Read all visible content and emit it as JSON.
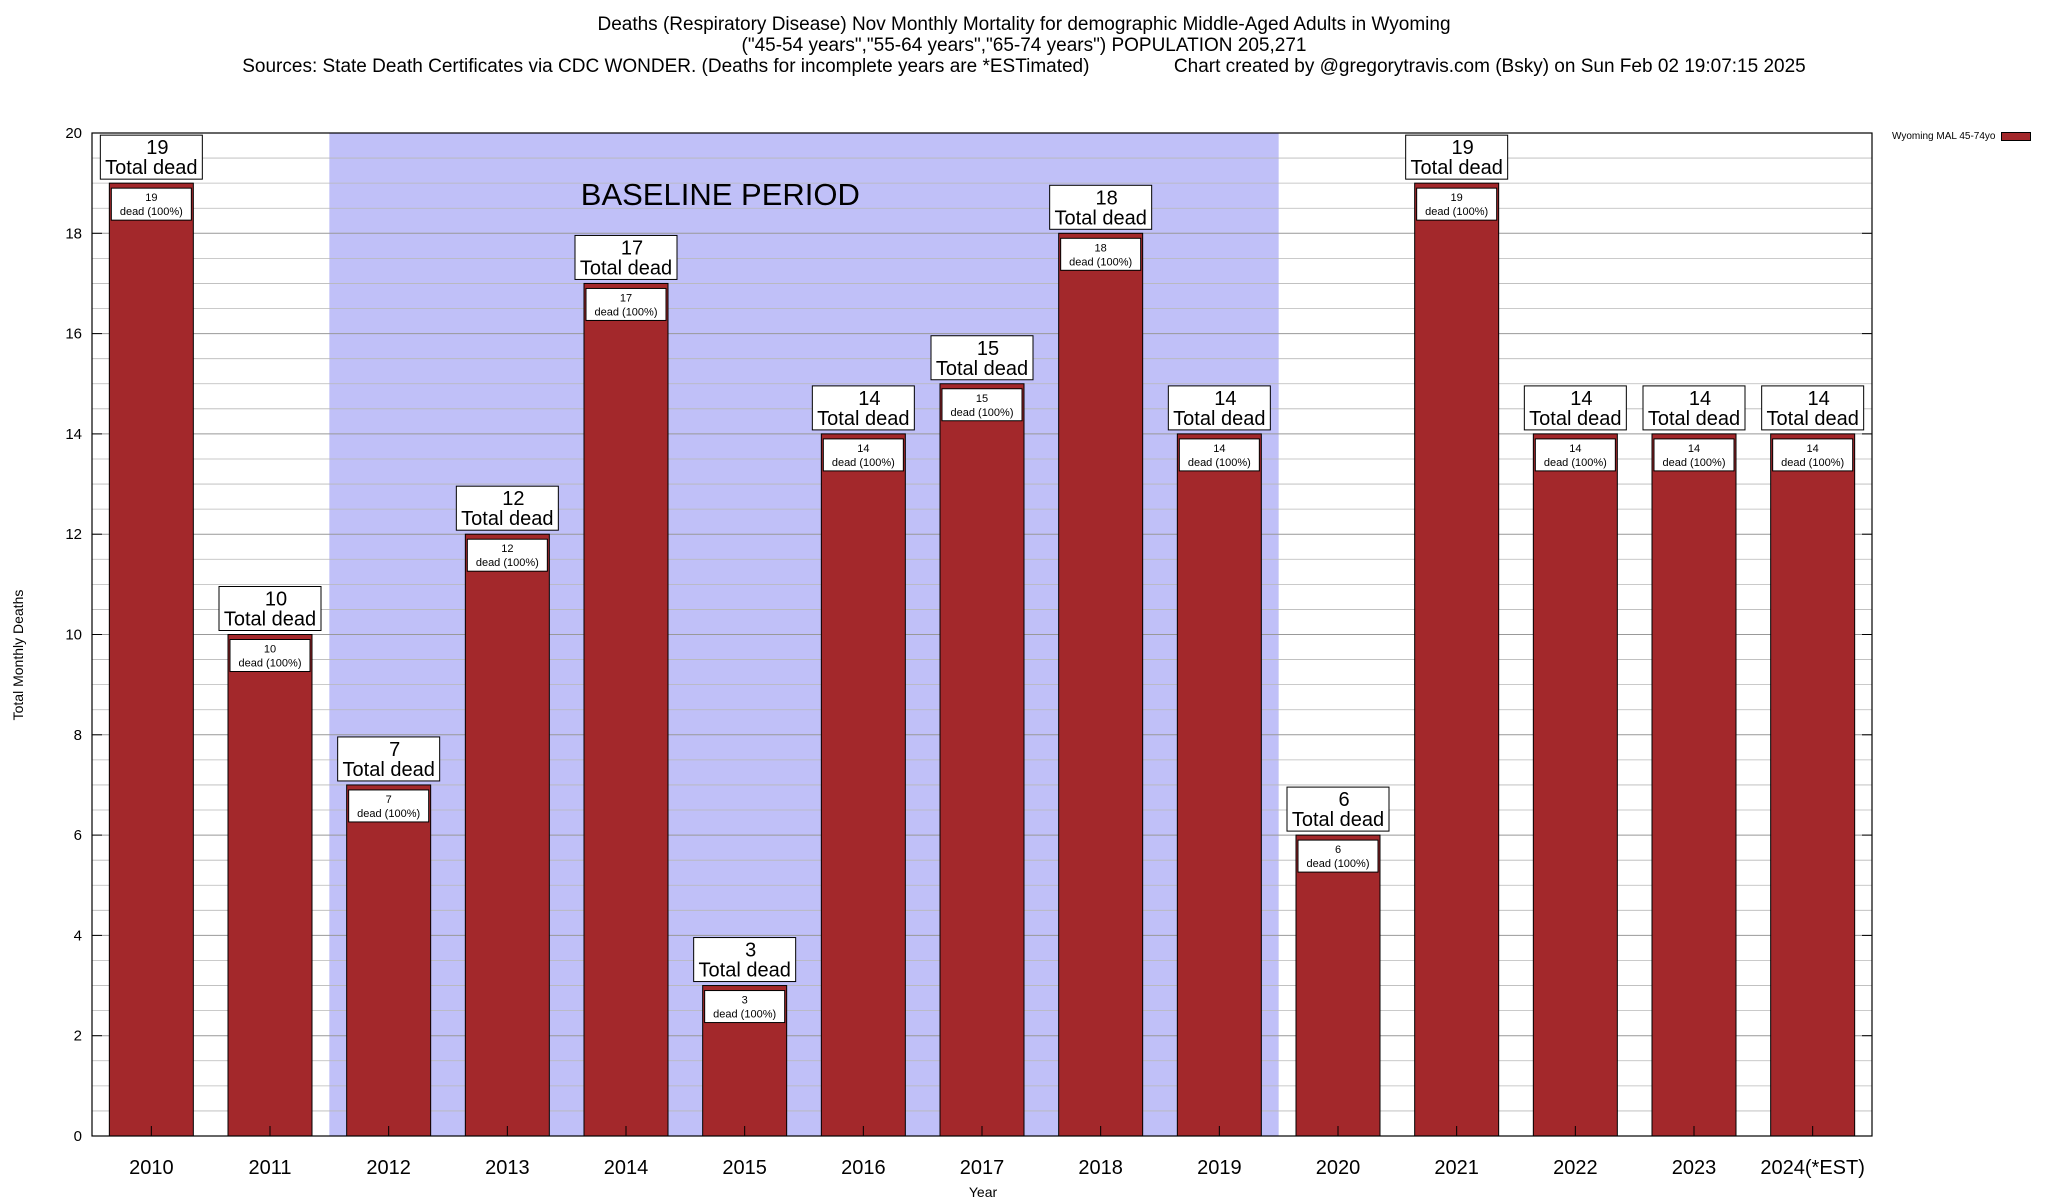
{
  "titles": {
    "line1": "Deaths (Respiratory Disease) Nov Monthly Mortality for demographic Middle-Aged Adults in Wyoming",
    "line2": "(\"45-54 years\",\"55-64 years\",\"65-74 years\") POPULATION 205,271",
    "line3": "Sources: State Death Certificates via CDC WONDER. (Deaths for incomplete years are *ESTimated)                Chart created by @gregorytravis.com (Bsky) on Sun Feb 02 19:07:15 2025"
  },
  "chart_data": {
    "type": "bar",
    "xlabel": "Year",
    "ylabel": "Total Monthly Deaths",
    "ylim": [
      0,
      20
    ],
    "yticks": [
      0,
      2,
      4,
      6,
      8,
      10,
      12,
      14,
      16,
      18,
      20
    ],
    "grid": "horizontal minor lines",
    "categories": [
      "2010",
      "2011",
      "2012",
      "2013",
      "2014",
      "2015",
      "2016",
      "2017",
      "2018",
      "2019",
      "2020",
      "2021",
      "2022",
      "2023",
      "2024(*EST)"
    ],
    "series": [
      {
        "name": "Wyoming MAL 45-74yo",
        "color": "#a3282b",
        "values": [
          19,
          10,
          7,
          12,
          17,
          3,
          14,
          15,
          18,
          14,
          6,
          19,
          14,
          14,
          14
        ]
      }
    ],
    "top_label_suffix": "Total dead",
    "inner_label_suffix": "dead (100%)",
    "annotation": {
      "text": "BASELINE PERIOD",
      "from_category": "2012",
      "to_category": "2019",
      "color": "#c0c0f8"
    },
    "legend_position": "top-right"
  },
  "colors": {
    "bar": "#a3282b",
    "baseline_band": "#c0c0f8",
    "grid": "#b8b8b8"
  }
}
